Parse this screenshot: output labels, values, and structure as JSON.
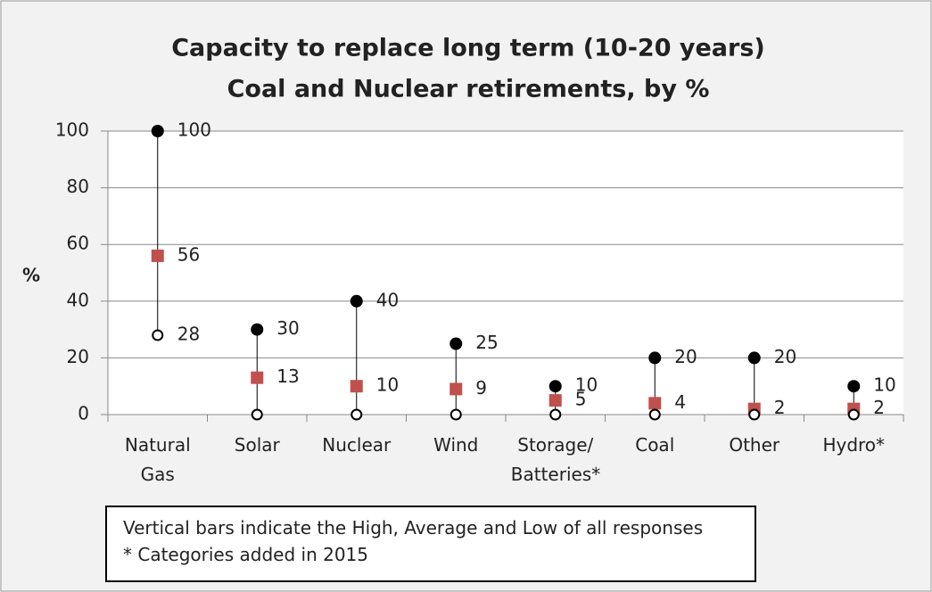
{
  "chart_data": {
    "type": "high-low",
    "title": "Capacity to replace long term (10-20 years)",
    "subtitle": "Coal and Nuclear retirements, by %",
    "y_label": "%",
    "categories": [
      "Natural Gas",
      "Solar",
      "Nuclear",
      "Wind",
      "Storage/ Batteries*",
      "Coal",
      "Other",
      "Hydro*"
    ],
    "series": [
      {
        "color": "#000000",
        "marker": "circle",
        "values": [
          100,
          30,
          40,
          25,
          10,
          20,
          20,
          10
        ]
      },
      {
        "color": "#c0504d",
        "marker": "square",
        "values": [
          56,
          13,
          10,
          9,
          5,
          4,
          2,
          2
        ]
      },
      {
        "color": "#000000",
        "marker": "open-circle",
        "values": [
          28,
          0,
          0,
          0,
          0,
          0,
          0,
          0
        ],
        "value_labels": [
          "28",
          null,
          null,
          null,
          null,
          null,
          null,
          null
        ]
      }
    ],
    "ylim": [
      0,
      100
    ],
    "yticks": [
      0,
      20,
      40,
      60,
      80,
      100
    ],
    "grid": true,
    "annotation": [
      "Vertical bars indicate the High, Average and Low of all responses",
      "* Categories added in 2015"
    ]
  }
}
